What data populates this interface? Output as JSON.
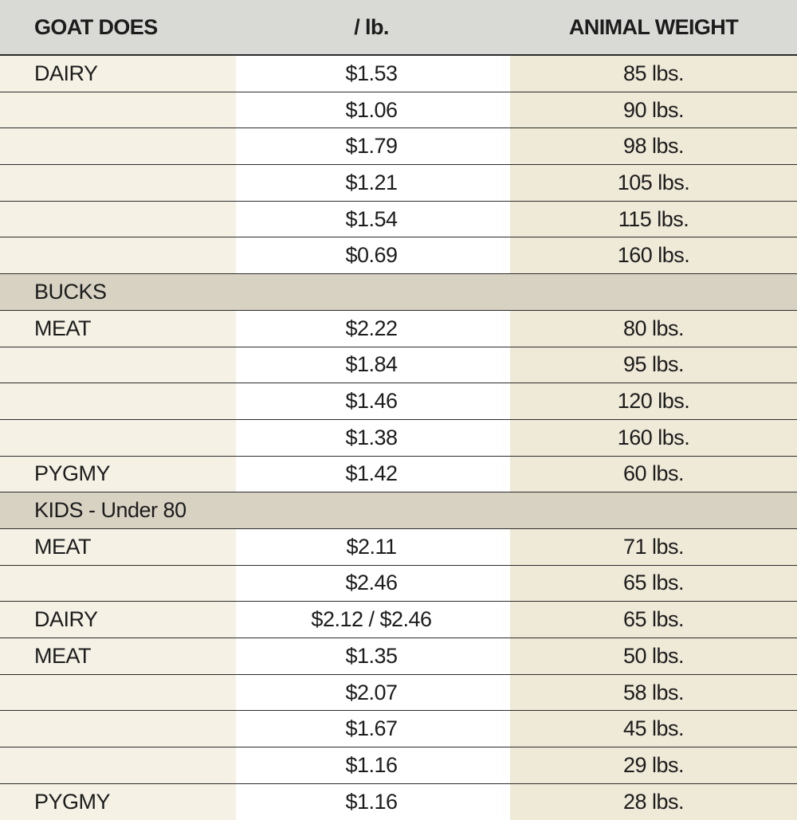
{
  "header": {
    "col1": "GOAT DOES",
    "col2": "/ lb.",
    "col3": "ANIMAL WEIGHT"
  },
  "rows": [
    {
      "type": "data",
      "category": "DAIRY",
      "price": "$1.53",
      "weight": "85 lbs."
    },
    {
      "type": "data",
      "category": "",
      "price": "$1.06",
      "weight": "90 lbs."
    },
    {
      "type": "data",
      "category": "",
      "price": "$1.79",
      "weight": "98 lbs."
    },
    {
      "type": "data",
      "category": "",
      "price": "$1.21",
      "weight": "105 lbs."
    },
    {
      "type": "data",
      "category": "",
      "price": "$1.54",
      "weight": "115 lbs."
    },
    {
      "type": "data",
      "category": "",
      "price": "$0.69",
      "weight": "160 lbs."
    },
    {
      "type": "section",
      "category": "BUCKS",
      "price": "",
      "weight": ""
    },
    {
      "type": "data",
      "category": "MEAT",
      "price": "$2.22",
      "weight": "80 lbs."
    },
    {
      "type": "data",
      "category": "",
      "price": "$1.84",
      "weight": "95 lbs."
    },
    {
      "type": "data",
      "category": "",
      "price": "$1.46",
      "weight": "120 lbs."
    },
    {
      "type": "data",
      "category": "",
      "price": "$1.38",
      "weight": "160 lbs."
    },
    {
      "type": "data",
      "category": "PYGMY",
      "price": "$1.42",
      "weight": "60 lbs."
    },
    {
      "type": "section",
      "category": "KIDS - Under 80",
      "price": "",
      "weight": ""
    },
    {
      "type": "data",
      "category": "MEAT",
      "price": "$2.11",
      "weight": "71 lbs."
    },
    {
      "type": "data",
      "category": "",
      "price": "$2.46",
      "weight": "65 lbs."
    },
    {
      "type": "data",
      "category": "DAIRY",
      "price": "$2.12 / $2.46",
      "weight": "65 lbs."
    },
    {
      "type": "data",
      "category": "MEAT",
      "price": "$1.35",
      "weight": "50 lbs."
    },
    {
      "type": "data",
      "category": "",
      "price": "$2.07",
      "weight": "58 lbs."
    },
    {
      "type": "data",
      "category": "",
      "price": "$1.67",
      "weight": "45 lbs."
    },
    {
      "type": "data",
      "category": "",
      "price": "$1.16",
      "weight": "29 lbs."
    },
    {
      "type": "data",
      "category": "PYGMY",
      "price": "$1.16",
      "weight": "28 lbs."
    }
  ]
}
